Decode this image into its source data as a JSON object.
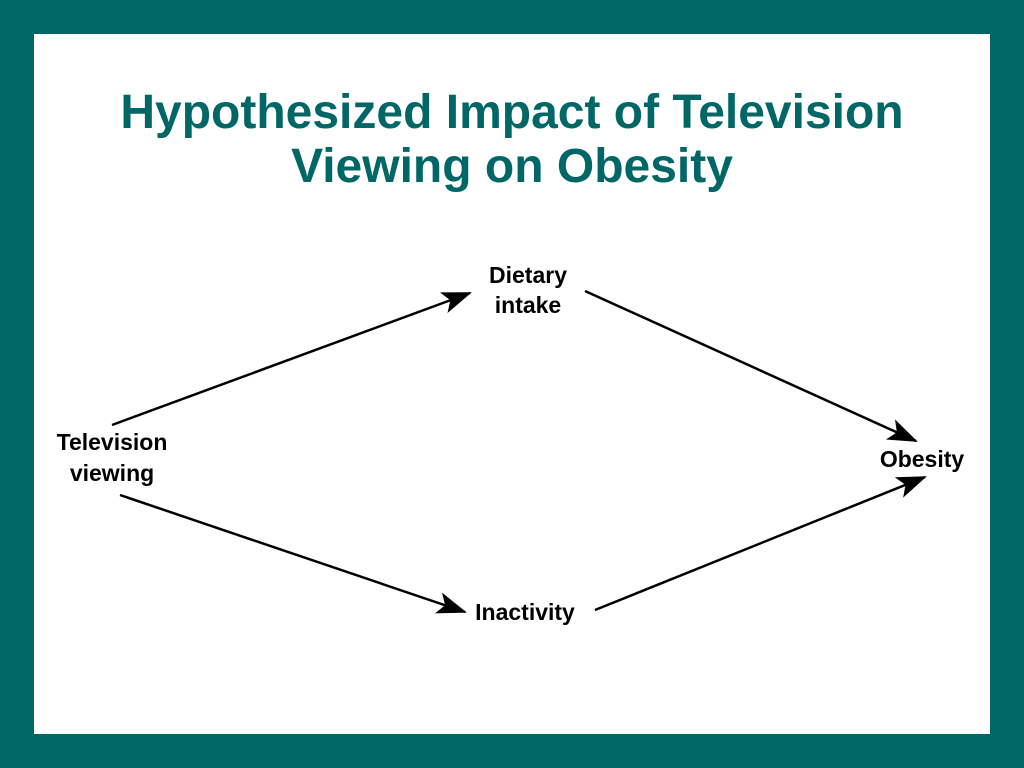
{
  "colors": {
    "frame": "#006666",
    "background": "#ffffff",
    "title": "#006666",
    "arrows": "#000000"
  },
  "title": {
    "line1": "Hypothesized Impact of Television",
    "line2": "Viewing on Obesity"
  },
  "nodes": {
    "television": {
      "line1": "Television",
      "line2": "viewing"
    },
    "dietary": {
      "line1": "Dietary",
      "line2": "intake"
    },
    "inactivity": {
      "line1": "Inactivity"
    },
    "obesity": {
      "line1": "Obesity"
    }
  },
  "edges": [
    {
      "from": "television",
      "to": "dietary"
    },
    {
      "from": "television",
      "to": "inactivity"
    },
    {
      "from": "dietary",
      "to": "obesity"
    },
    {
      "from": "inactivity",
      "to": "obesity"
    }
  ]
}
